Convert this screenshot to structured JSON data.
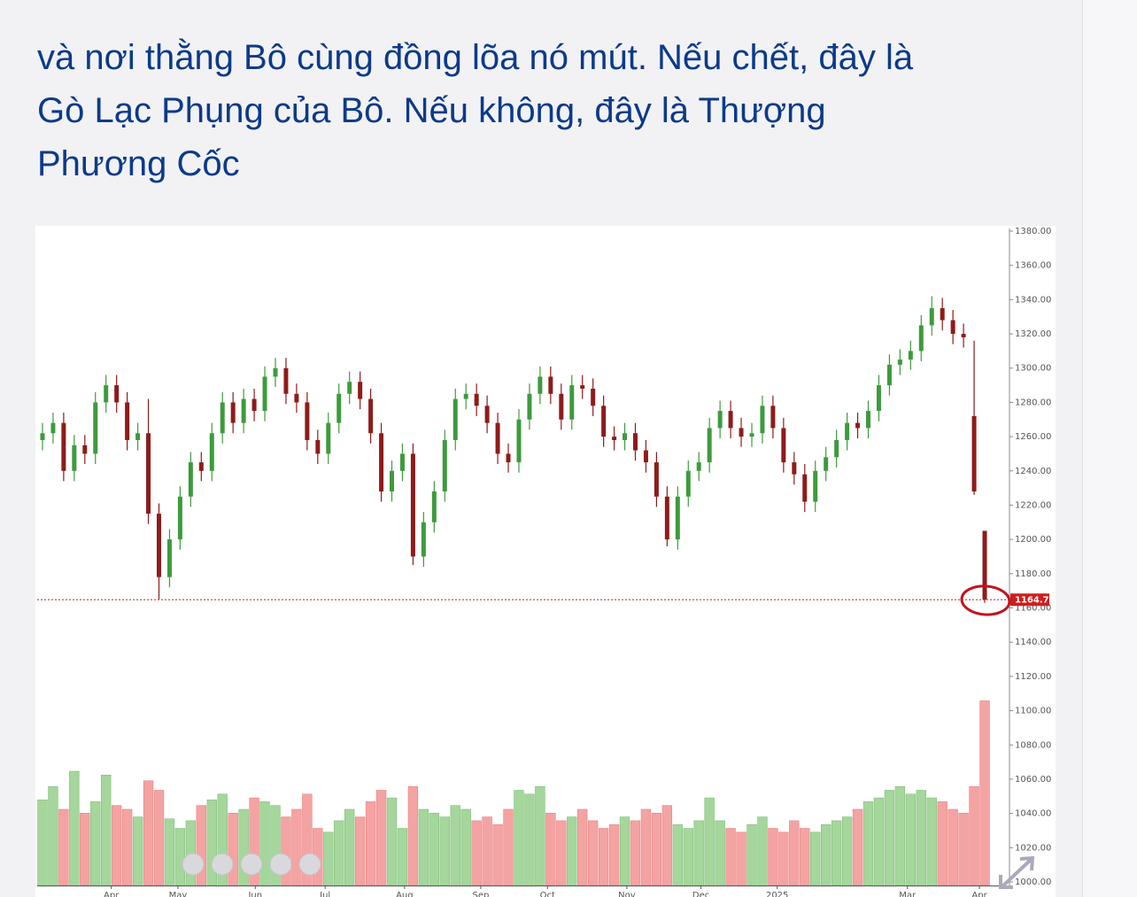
{
  "post": {
    "text_lines": [
      "và nơi thằng Bô cùng đồng lõa nó mút. Nếu chết, đây là",
      "Gò Lạc Phụng của Bô. Nếu không, đây là Thượng",
      "Phương Cốc"
    ]
  },
  "chart_data": {
    "type": "candlestick",
    "open": [
      1258,
      1262,
      1268,
      1240,
      1255,
      1250,
      1280,
      1290,
      1280,
      1258,
      1262,
      1215,
      1178,
      1200,
      1225,
      1245,
      1240,
      1262,
      1280,
      1268,
      1282,
      1275,
      1295,
      1300,
      1285,
      1280,
      1258,
      1250,
      1268,
      1285,
      1292,
      1282,
      1262,
      1228,
      1240,
      1250,
      1190,
      1210,
      1228,
      1258,
      1282,
      1285,
      1278,
      1268,
      1250,
      1245,
      1270,
      1285,
      1295,
      1285,
      1270,
      1290,
      1288,
      1278,
      1260,
      1258,
      1262,
      1252,
      1245,
      1225,
      1200,
      1225,
      1240,
      1245,
      1265,
      1275,
      1265,
      1260,
      1262,
      1278,
      1265,
      1245,
      1238,
      1222,
      1240,
      1248,
      1258,
      1268,
      1265,
      1275,
      1290,
      1302,
      1305,
      1310,
      1325,
      1335,
      1328,
      1320,
      1272,
      1205
    ],
    "high": [
      1268,
      1274,
      1274,
      1261,
      1261,
      1286,
      1296,
      1296,
      1286,
      1268,
      1282,
      1221,
      1206,
      1231,
      1251,
      1251,
      1268,
      1286,
      1286,
      1288,
      1288,
      1301,
      1306,
      1306,
      1291,
      1286,
      1264,
      1274,
      1291,
      1298,
      1298,
      1288,
      1268,
      1246,
      1256,
      1256,
      1216,
      1234,
      1264,
      1288,
      1291,
      1291,
      1284,
      1274,
      1256,
      1276,
      1291,
      1301,
      1301,
      1291,
      1296,
      1296,
      1294,
      1284,
      1266,
      1268,
      1268,
      1258,
      1251,
      1231,
      1231,
      1246,
      1251,
      1271,
      1281,
      1281,
      1271,
      1268,
      1284,
      1284,
      1271,
      1251,
      1244,
      1246,
      1254,
      1264,
      1274,
      1274,
      1281,
      1296,
      1308,
      1311,
      1316,
      1331,
      1342,
      1341,
      1334,
      1326,
      1316,
      1205
    ],
    "low": [
      1252,
      1256,
      1234,
      1234,
      1244,
      1244,
      1274,
      1274,
      1252,
      1252,
      1209,
      1165,
      1172,
      1194,
      1219,
      1234,
      1234,
      1256,
      1262,
      1262,
      1269,
      1269,
      1289,
      1279,
      1274,
      1252,
      1244,
      1244,
      1262,
      1279,
      1276,
      1256,
      1222,
      1222,
      1234,
      1185,
      1184,
      1204,
      1222,
      1252,
      1276,
      1272,
      1262,
      1244,
      1239,
      1239,
      1264,
      1279,
      1279,
      1264,
      1264,
      1282,
      1272,
      1254,
      1252,
      1252,
      1246,
      1239,
      1219,
      1196,
      1194,
      1219,
      1234,
      1239,
      1259,
      1259,
      1254,
      1254,
      1256,
      1259,
      1239,
      1232,
      1216,
      1216,
      1234,
      1242,
      1252,
      1259,
      1259,
      1269,
      1284,
      1296,
      1299,
      1304,
      1319,
      1322,
      1314,
      1312,
      1226,
      1163
    ],
    "close": [
      1262,
      1268,
      1240,
      1255,
      1250,
      1280,
      1290,
      1280,
      1258,
      1262,
      1215,
      1178,
      1200,
      1225,
      1245,
      1240,
      1262,
      1280,
      1268,
      1282,
      1275,
      1295,
      1300,
      1285,
      1280,
      1258,
      1250,
      1268,
      1285,
      1292,
      1282,
      1262,
      1228,
      1240,
      1250,
      1190,
      1210,
      1228,
      1258,
      1282,
      1285,
      1278,
      1268,
      1250,
      1245,
      1270,
      1285,
      1295,
      1285,
      1270,
      1290,
      1288,
      1278,
      1260,
      1258,
      1262,
      1252,
      1245,
      1225,
      1200,
      1225,
      1240,
      1245,
      1265,
      1275,
      1265,
      1260,
      1262,
      1278,
      1265,
      1245,
      1238,
      1222,
      1240,
      1248,
      1258,
      1268,
      1265,
      1275,
      1290,
      1302,
      1305,
      1310,
      1325,
      1335,
      1328,
      1320,
      1318,
      1228,
      1164.79
    ],
    "volume": [
      45,
      52,
      40,
      60,
      38,
      44,
      58,
      42,
      40,
      36,
      55,
      50,
      35,
      30,
      34,
      42,
      45,
      48,
      38,
      40,
      46,
      44,
      42,
      36,
      40,
      48,
      30,
      28,
      34,
      40,
      36,
      44,
      50,
      46,
      30,
      52,
      40,
      38,
      36,
      42,
      40,
      34,
      36,
      32,
      40,
      50,
      48,
      52,
      38,
      34,
      36,
      40,
      34,
      30,
      32,
      36,
      34,
      40,
      38,
      42,
      32,
      30,
      34,
      46,
      34,
      30,
      28,
      32,
      36,
      30,
      28,
      34,
      30,
      28,
      32,
      34,
      36,
      40,
      44,
      46,
      50,
      52,
      48,
      50,
      46,
      44,
      40,
      38,
      52,
      97
    ],
    "vlim": [
      0,
      100
    ],
    "up_color": "#3e9a3e",
    "down_color": "#8e1b1b",
    "volume_up_color": "#a5d69c",
    "volume_down_color": "#f4a3a3",
    "xlim": [
      -0.5,
      89.5
    ],
    "xticks": [
      {
        "value": 6.5,
        "label": "Apr"
      },
      {
        "value": 12.8,
        "label": "May"
      },
      {
        "value": 20.1,
        "label": "Jun"
      },
      {
        "value": 26.7,
        "label": "Jul"
      },
      {
        "value": 34.2,
        "label": "Aug"
      },
      {
        "value": 41.4,
        "label": "Sep"
      },
      {
        "value": 47.7,
        "label": "Oct"
      },
      {
        "value": 55.2,
        "label": "Nov"
      },
      {
        "value": 62.2,
        "label": "Dec"
      },
      {
        "value": 69.4,
        "label": "2025"
      },
      {
        "value": 81.7,
        "label": "Mar"
      },
      {
        "value": 88.5,
        "label": "Apr"
      }
    ],
    "ylim": [
      1000,
      1380
    ],
    "yticks": [
      {
        "value": 1000,
        "label": "1000.00"
      },
      {
        "value": 1020,
        "label": "1020.00"
      },
      {
        "value": 1040,
        "label": "1040.00"
      },
      {
        "value": 1060,
        "label": "1060.00"
      },
      {
        "value": 1080,
        "label": "1080.00"
      },
      {
        "value": 1100,
        "label": "1100.00"
      },
      {
        "value": 1120,
        "label": "1120.00"
      },
      {
        "value": 1140,
        "label": "1140.00"
      },
      {
        "value": 1160,
        "label": "1160.00"
      },
      {
        "value": 1180,
        "label": "1180.00"
      },
      {
        "value": 1200,
        "label": "1200.00"
      },
      {
        "value": 1220,
        "label": "1220.00"
      },
      {
        "value": 1240,
        "label": "1240.00"
      },
      {
        "value": 1260,
        "label": "1260.00"
      },
      {
        "value": 1280,
        "label": "1280.00"
      },
      {
        "value": 1300,
        "label": "1300.00"
      },
      {
        "value": 1320,
        "label": "1320.00"
      },
      {
        "value": 1340,
        "label": "1340.00"
      },
      {
        "value": 1360,
        "label": "1360.00"
      },
      {
        "value": 1380,
        "label": "1380.00"
      }
    ],
    "price_line": {
      "value": 1164.79,
      "color": "#cc1f1f"
    },
    "grid": false
  }
}
